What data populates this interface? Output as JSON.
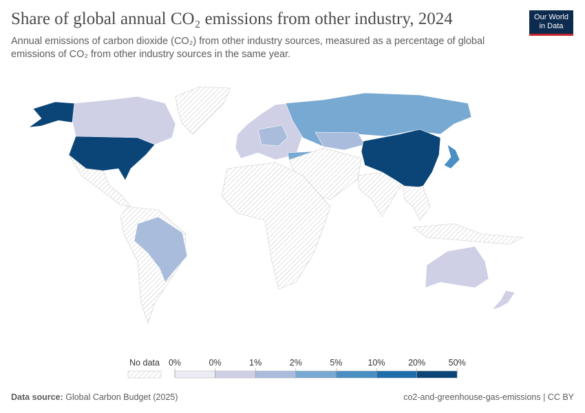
{
  "header": {
    "title": "Share of global annual CO₂ emissions from other industry, 2024",
    "subtitle": "Annual emissions of carbon dioxide (CO₂) from other industry sources, measured as a percentage of global emissions of CO₂ from other industry sources in the same year."
  },
  "logo": {
    "line1": "Our World",
    "line2": "in Data"
  },
  "legend": {
    "no_data": "No data",
    "ticks": [
      "0%",
      "0%",
      "1%",
      "2%",
      "5%",
      "10%",
      "20%",
      "50%"
    ],
    "colors": [
      "#ececf4",
      "#cfcfe6",
      "#a9bcdc",
      "#78a9d2",
      "#4a8fc3",
      "#1f6eac",
      "#0b4577"
    ]
  },
  "footer": {
    "source_label": "Data source:",
    "source": "Global Carbon Budget (2025)",
    "right": "co2-and-greenhouse-gas-emissions | CC BY"
  }
}
